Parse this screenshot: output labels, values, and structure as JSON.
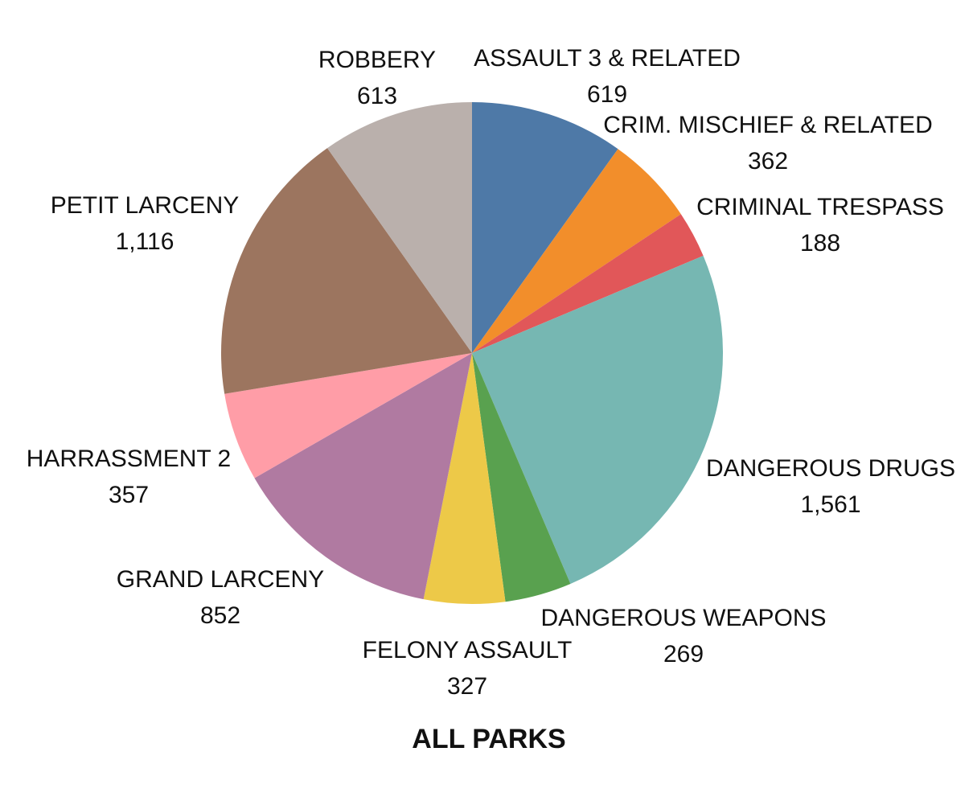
{
  "chart_data": {
    "type": "pie",
    "title": "ALL PARKS",
    "start": "12 o'clock",
    "direction": "clockwise",
    "slices": [
      {
        "label": "ASSAULT 3 & RELATED",
        "value": 619,
        "value_text": "619",
        "color": "#4E79A7"
      },
      {
        "label": "CRIM. MISCHIEF & RELATED",
        "value": 362,
        "value_text": "362",
        "color": "#F28E2B"
      },
      {
        "label": "CRIMINAL TRESPASS",
        "value": 188,
        "value_text": "188",
        "color": "#E15759"
      },
      {
        "label": "DANGEROUS DRUGS",
        "value": 1561,
        "value_text": "1,561",
        "color": "#76B7B2"
      },
      {
        "label": "DANGEROUS WEAPONS",
        "value": 269,
        "value_text": "269",
        "color": "#59A14F"
      },
      {
        "label": "FELONY ASSAULT",
        "value": 327,
        "value_text": "327",
        "color": "#EDC948"
      },
      {
        "label": "GRAND LARCENY",
        "value": 852,
        "value_text": "852",
        "color": "#B07AA1"
      },
      {
        "label": "HARRASSMENT 2",
        "value": 357,
        "value_text": "357",
        "color": "#FF9DA7"
      },
      {
        "label": "PETIT LARCENY",
        "value": 1116,
        "value_text": "1,116",
        "color": "#9C755F"
      },
      {
        "label": "ROBBERY",
        "value": 613,
        "value_text": "613",
        "color": "#BAB0AC"
      }
    ]
  }
}
